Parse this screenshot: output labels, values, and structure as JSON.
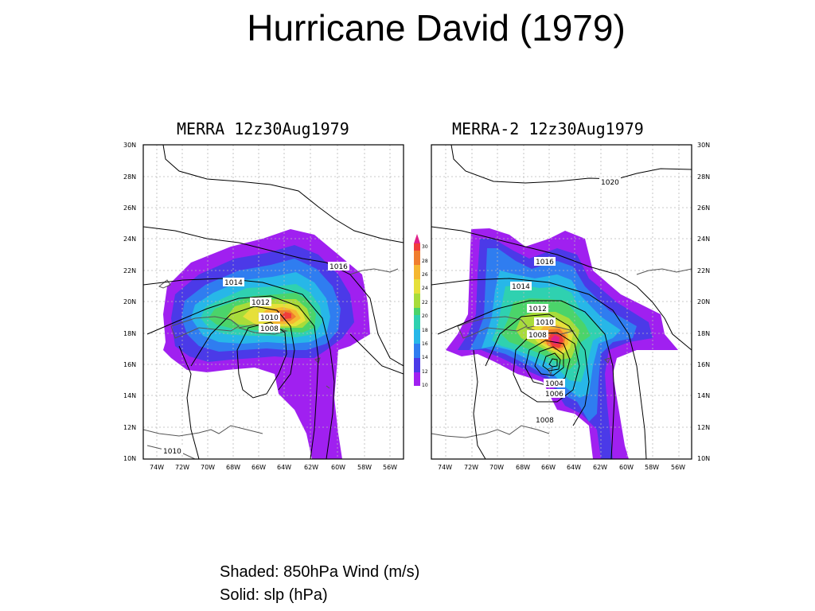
{
  "slide": {
    "title": "Hurricane David (1979)"
  },
  "panels": [
    {
      "title": "MERRA 12z30Aug1979",
      "pressure_labels": [
        "1016",
        "1014",
        "1012",
        "1010",
        "1008",
        "1010"
      ]
    },
    {
      "title": "MERRA-2 12z30Aug1979",
      "pressure_labels": [
        "1020",
        "1016",
        "1014",
        "1012",
        "1010",
        "1008",
        "1004",
        "1006",
        "1008"
      ]
    }
  ],
  "axes": {
    "lat_labels": [
      "30N",
      "28N",
      "26N",
      "24N",
      "22N",
      "20N",
      "18N",
      "16N",
      "14N",
      "12N",
      "10N"
    ],
    "lon_labels": [
      "74W",
      "72W",
      "70W",
      "68W",
      "66W",
      "64W",
      "62W",
      "60W",
      "58W",
      "56W"
    ]
  },
  "colorbar": {
    "labels": [
      "30",
      "28",
      "26",
      "24",
      "22",
      "20",
      "18",
      "16",
      "14",
      "12",
      "10"
    ]
  },
  "caption": {
    "line1": "Shaded:  850hPa Wind (m/s)",
    "line2": "Solid: slp (hPa)"
  },
  "colors": {
    "c10": "#a020f0",
    "c12": "#4b3ae8",
    "c14": "#2f7df0",
    "c16": "#27b7e8",
    "c18": "#2fd1b0",
    "c20": "#4bd46a",
    "c22": "#a8dc3a",
    "c24": "#e6e03a",
    "c26": "#f5b731",
    "c28": "#f07e2e",
    "c30": "#f03d3a",
    "c32": "#e0208a"
  }
}
